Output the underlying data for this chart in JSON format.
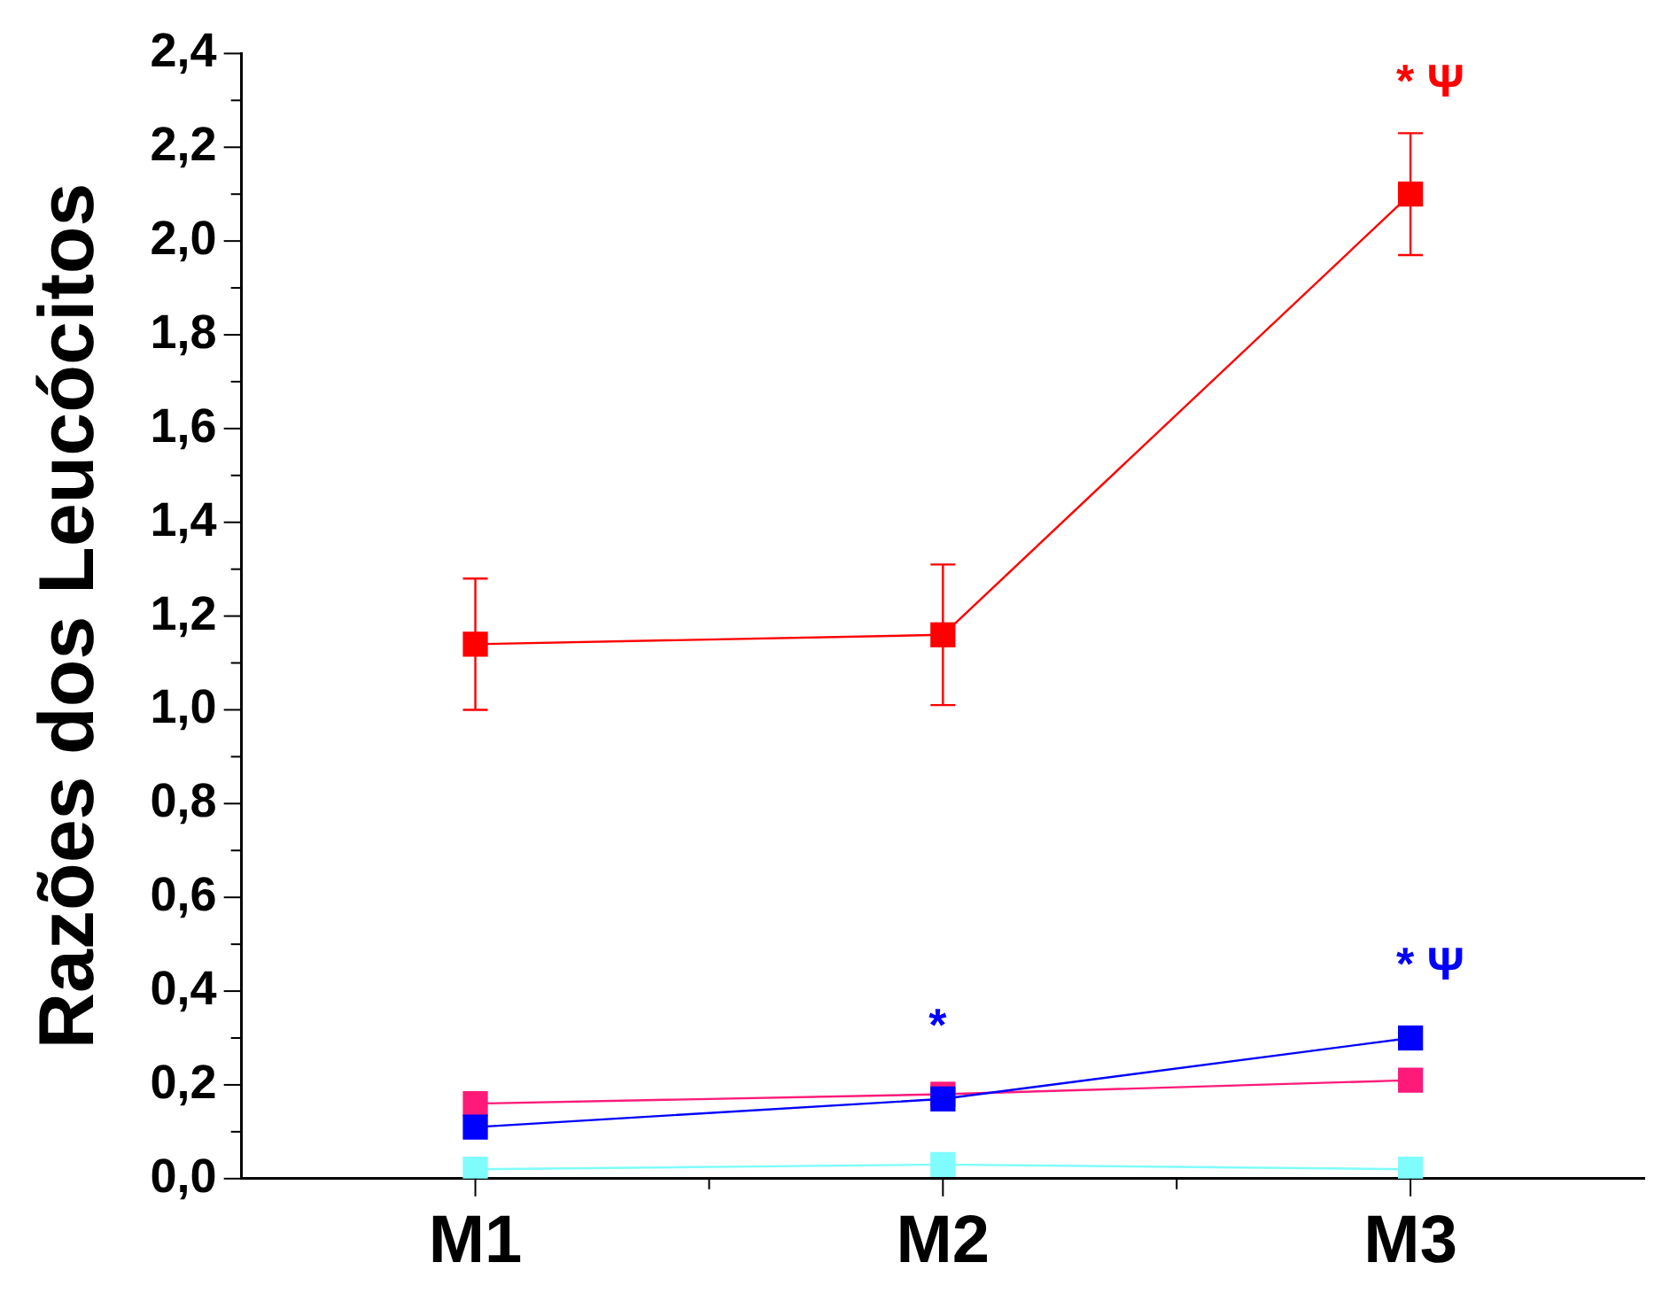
{
  "chart_data": {
    "type": "line",
    "ylabel": "Razões dos Leucócitos",
    "categories": [
      "M1",
      "M2",
      "M3"
    ],
    "series": [
      {
        "color": "#ff0000",
        "values": [
          1.14,
          1.16,
          2.1
        ],
        "errors": [
          0.14,
          0.15,
          0.13
        ]
      },
      {
        "color": "#ff1a7a",
        "values": [
          0.16,
          0.18,
          0.21
        ]
      },
      {
        "color": "#0000ff",
        "values": [
          0.11,
          0.17,
          0.3
        ]
      },
      {
        "color": "#7ffcfc",
        "values": [
          0.02,
          0.03,
          0.02
        ]
      }
    ],
    "ylim": [
      0,
      2.4
    ],
    "yticks": [
      {
        "value": 0,
        "label": "0,0"
      },
      {
        "value": 0.1,
        "label": null
      },
      {
        "value": 0.2,
        "label": "0,2"
      },
      {
        "value": 0.3,
        "label": null
      },
      {
        "value": 0.4,
        "label": "0,4"
      },
      {
        "value": 0.5,
        "label": null
      },
      {
        "value": 0.6,
        "label": "0,6"
      },
      {
        "value": 0.7,
        "label": null
      },
      {
        "value": 0.8,
        "label": "0,8"
      },
      {
        "value": 0.9,
        "label": null
      },
      {
        "value": 1.0,
        "label": "1,0"
      },
      {
        "value": 1.1,
        "label": null
      },
      {
        "value": 1.2,
        "label": "1,2"
      },
      {
        "value": 1.3,
        "label": null
      },
      {
        "value": 1.4,
        "label": "1,4"
      },
      {
        "value": 1.5,
        "label": null
      },
      {
        "value": 1.6,
        "label": "1,6"
      },
      {
        "value": 1.7,
        "label": null
      },
      {
        "value": 1.8,
        "label": "1,8"
      },
      {
        "value": 1.9,
        "label": null
      },
      {
        "value": 2.0,
        "label": "2,0"
      },
      {
        "value": 2.1,
        "label": null
      },
      {
        "value": 2.2,
        "label": "2,2"
      },
      {
        "value": 2.3,
        "label": null
      },
      {
        "value": 2.4,
        "label": "2,4"
      }
    ],
    "annotations": [
      {
        "text": "* Ψ",
        "x": "M3",
        "y": 2.1
      },
      {
        "text": "* Ψ",
        "x": "M3",
        "y": 0.3
      },
      {
        "text": "*",
        "x": "M2",
        "y": 0.17
      }
    ],
    "grid": false,
    "legend": false,
    "marker": "square",
    "line_style": "solid"
  }
}
